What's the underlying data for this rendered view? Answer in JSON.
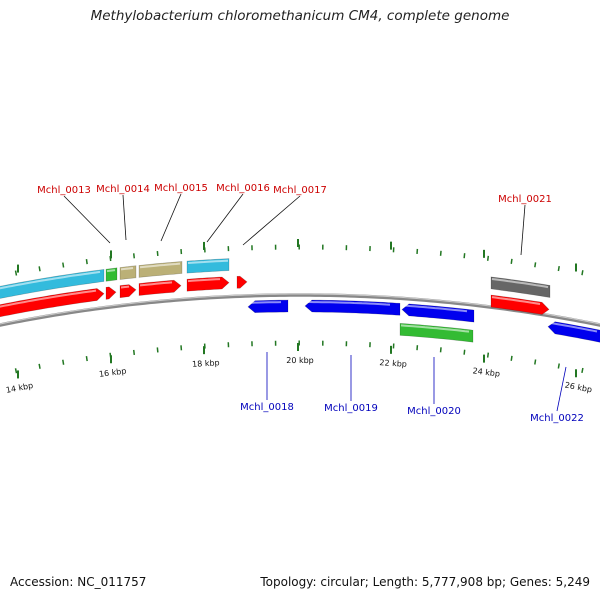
{
  "title": "Methylobacterium chloromethanicum CM4, complete genome",
  "footer": {
    "accession": "Accession: NC_011757",
    "stats": "Topology: circular; Length: 5,777,908 bp; Genes: 5,249"
  },
  "tick_labels": [
    "14 kbp",
    "16 kbp",
    "18 kbp",
    "20 kbp",
    "22 kbp",
    "24 kbp",
    "26 kbp"
  ],
  "gene_labels": {
    "forward": [
      "Mchl_0013",
      "Mchl_0014",
      "Mchl_0015",
      "Mchl_0016",
      "Mchl_0017",
      "Mchl_0021"
    ],
    "reverse": [
      "Mchl_0018",
      "Mchl_0019",
      "Mchl_0020",
      "Mchl_0022"
    ]
  },
  "colors": {
    "forward_gene": "#ff0000",
    "reverse_gene": "#0000ee",
    "forward_label": "#cc0000",
    "reverse_label": "#0000bb",
    "cog_cyan": "#33bbdd",
    "cog_green": "#33bb33",
    "cog_khaki": "#bbb077",
    "cog_gray": "#666666",
    "backbone": "#888888",
    "tick": "#227722"
  }
}
